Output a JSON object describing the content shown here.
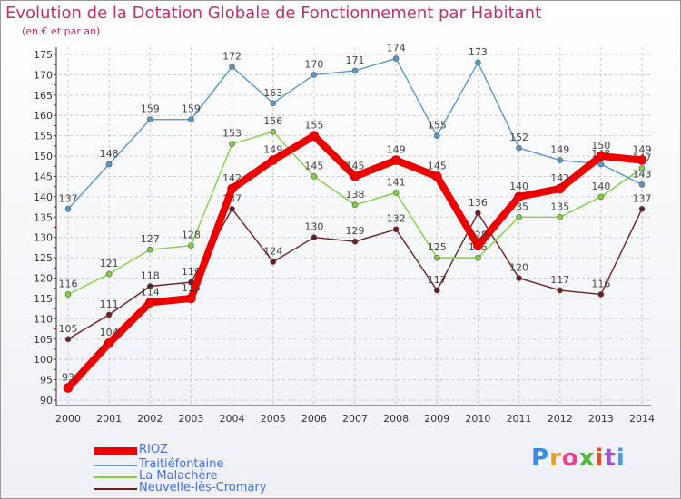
{
  "chart_data": {
    "type": "line",
    "title": "Evolution de la Dotation Globale de Fonctionnement par Habitant",
    "subtitle": "(en € et par an)",
    "xlabel": "",
    "ylabel": "",
    "x": [
      2000,
      2001,
      2002,
      2003,
      2004,
      2005,
      2006,
      2007,
      2008,
      2009,
      2010,
      2011,
      2012,
      2013,
      2014
    ],
    "ylim": [
      90,
      175
    ],
    "yticks": [
      90,
      95,
      100,
      105,
      110,
      115,
      120,
      125,
      130,
      135,
      140,
      145,
      150,
      155,
      160,
      165,
      170,
      175
    ],
    "grid": true,
    "series": [
      {
        "name": "Neuvelle-lès-Cromary",
        "color": "#6b1f1f",
        "values": [
          105,
          111,
          118,
          119,
          137,
          124,
          130,
          129,
          132,
          117,
          136,
          120,
          117,
          116,
          137
        ]
      },
      {
        "name": "La Malachère",
        "color": "#80d040",
        "values": [
          116,
          121,
          127,
          128,
          153,
          156,
          145,
          138,
          141,
          125,
          125,
          135,
          135,
          140,
          147
        ]
      },
      {
        "name": "Traitiéfontaine",
        "color": "#5599cc",
        "values": [
          137,
          148,
          159,
          159,
          172,
          163,
          170,
          171,
          174,
          155,
          173,
          152,
          149,
          148,
          143
        ]
      },
      {
        "name": "RIOZ",
        "color": "#ee0000",
        "values": [
          93,
          104,
          114,
          115,
          142,
          149,
          155,
          145,
          149,
          145,
          128,
          140,
          142,
          150,
          149
        ]
      }
    ],
    "legend": [
      "RIOZ",
      "Traitiéfontaine",
      "La Malachère",
      "Neuvelle-lès-Cromary"
    ]
  },
  "logo": {
    "text": "Proxiti"
  }
}
